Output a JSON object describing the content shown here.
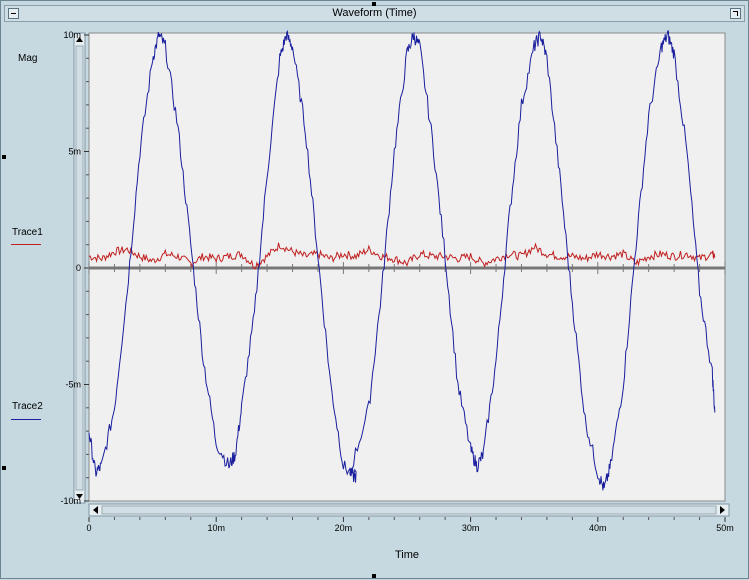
{
  "window": {
    "title": "Waveform (Time)"
  },
  "colors": {
    "trace1": "#c02020",
    "trace2": "#1a1f9e",
    "plot_bg": "#f0f0f0",
    "frame_bg": "#c6d8e0"
  },
  "chart_data": {
    "type": "line",
    "ylabel": "Mag",
    "xlabel": "Time",
    "xlim": [
      0,
      0.05
    ],
    "ylim": [
      -0.01,
      0.01
    ],
    "x_tick_labels": [
      "0",
      "10m",
      "20m",
      "30m",
      "40m",
      "50m"
    ],
    "y_tick_labels": [
      "10m",
      "5m",
      "0",
      "-5m",
      "-10m"
    ],
    "legend_placement": "left",
    "series": [
      {
        "name": "Trace1",
        "color": "#c02020",
        "x": [
          0,
          0.001,
          0.002,
          0.003,
          0.004,
          0.005,
          0.006,
          0.007,
          0.008,
          0.009,
          0.01,
          0.011,
          0.012,
          0.013,
          0.014,
          0.015,
          0.016,
          0.017,
          0.018,
          0.019,
          0.02,
          0.021,
          0.022,
          0.023,
          0.024,
          0.025,
          0.026,
          0.027,
          0.028,
          0.029,
          0.03,
          0.031,
          0.032,
          0.033,
          0.034,
          0.035,
          0.036,
          0.037,
          0.038,
          0.039,
          0.04,
          0.041,
          0.042,
          0.043,
          0.044,
          0.045,
          0.046,
          0.047,
          0.048,
          0.049,
          0.0492
        ],
        "y": [
          0.0005,
          0.0004,
          0.0007,
          0.0008,
          0.0005,
          0.0003,
          0.0006,
          0.0005,
          0.0002,
          0.0005,
          0.0004,
          0.0005,
          0.0006,
          0.0001,
          0.0005,
          0.001,
          0.0007,
          0.0005,
          0.0006,
          0.0004,
          0.0006,
          0.0005,
          0.0008,
          0.0005,
          0.0004,
          0.0002,
          0.0006,
          0.0005,
          0.0005,
          0.0004,
          0.0005,
          0.0002,
          0.0004,
          0.0006,
          0.0005,
          0.0009,
          0.0006,
          0.0005,
          0.0005,
          0.0004,
          0.0006,
          0.0005,
          0.0006,
          0.0002,
          0.0005,
          0.0006,
          0.0005,
          0.0006,
          0.0004,
          0.0006,
          0.0005
        ]
      },
      {
        "name": "Trace2",
        "color": "#1a1f9e",
        "x": [
          0,
          0.0005,
          0.001,
          0.002,
          0.003,
          0.004,
          0.005,
          0.0055,
          0.006,
          0.007,
          0.008,
          0.009,
          0.01,
          0.011,
          0.0115,
          0.012,
          0.013,
          0.014,
          0.015,
          0.0155,
          0.016,
          0.017,
          0.018,
          0.019,
          0.02,
          0.021,
          0.0205,
          0.022,
          0.023,
          0.024,
          0.025,
          0.0255,
          0.026,
          0.027,
          0.028,
          0.029,
          0.03,
          0.0305,
          0.031,
          0.032,
          0.033,
          0.034,
          0.035,
          0.0355,
          0.036,
          0.037,
          0.038,
          0.039,
          0.04,
          0.0405,
          0.041,
          0.042,
          0.043,
          0.044,
          0.045,
          0.0455,
          0.046,
          0.047,
          0.048,
          0.049,
          0.0492
        ],
        "y": [
          -0.007,
          -0.0088,
          -0.0085,
          -0.006,
          -0.001,
          0.005,
          0.009,
          0.01,
          0.0095,
          0.006,
          0.001,
          -0.004,
          -0.0075,
          -0.0085,
          -0.008,
          -0.006,
          -0.002,
          0.004,
          0.009,
          0.01,
          0.0095,
          0.006,
          0.0005,
          -0.005,
          -0.0085,
          -0.009,
          -0.0088,
          -0.006,
          -0.001,
          0.005,
          0.0092,
          0.01,
          0.0095,
          0.0055,
          0.0005,
          -0.005,
          -0.0078,
          -0.0085,
          -0.008,
          -0.004,
          0.002,
          0.007,
          0.0095,
          0.01,
          0.009,
          0.004,
          -0.0015,
          -0.0065,
          -0.0088,
          -0.0095,
          -0.0085,
          -0.005,
          0.001,
          0.0065,
          0.0095,
          0.01,
          0.0092,
          0.005,
          -0.001,
          -0.0045,
          -0.0062
        ]
      }
    ]
  }
}
